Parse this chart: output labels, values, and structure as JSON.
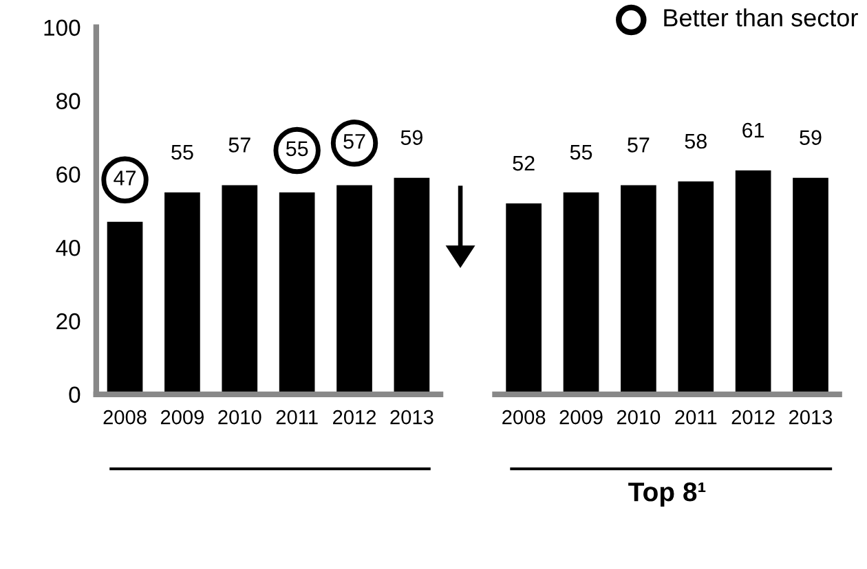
{
  "chart_data": [
    {
      "type": "bar",
      "categories": [
        "2008",
        "2009",
        "2010",
        "2011",
        "2012",
        "2013"
      ],
      "ylim": [
        0,
        100
      ],
      "yticks": [
        0,
        20,
        40,
        60,
        80,
        100
      ],
      "grid": false,
      "series": [
        {
          "color": "#000000",
          "values": [
            47,
            55,
            57,
            55,
            57,
            59
          ],
          "value_labels": [
            null,
            "55",
            "57",
            null,
            null,
            "59"
          ]
        }
      ],
      "annotations": [
        {
          "text": "47",
          "x": "2008",
          "y": 47
        },
        {
          "text": "55",
          "x": "2011",
          "y": 55
        },
        {
          "text": "57",
          "x": "2012",
          "y": 57
        },
        "Better than sector"
      ]
    },
    {
      "type": "bar",
      "categories": [
        "2008",
        "2009",
        "2010",
        "2011",
        "2012",
        "2013"
      ],
      "ylim": [
        0,
        100
      ],
      "tick_labels": "x",
      "grid": false,
      "data_labels": true,
      "xlabel": "Top 8¹",
      "series": [
        {
          "color": "#000000",
          "values": [
            52,
            55,
            57,
            58,
            61,
            59
          ]
        }
      ]
    }
  ]
}
